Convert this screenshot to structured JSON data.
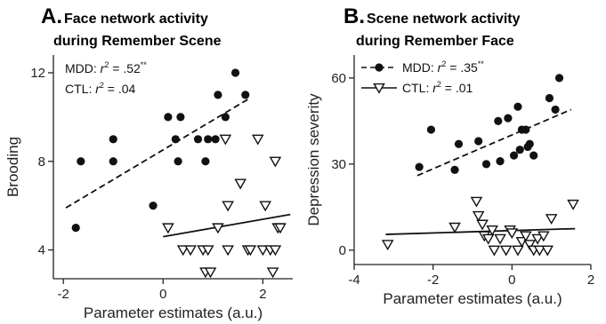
{
  "chart_data": [
    {
      "type": "scatter",
      "panel_letter": "A.",
      "title_line1": "Face network activity",
      "title_line2": "during Remember Scene",
      "xlabel": "Parameter estimates (a.u.)",
      "ylabel": "Brooding",
      "xlim": [
        -2.2,
        2.6
      ],
      "ylim": [
        2.7,
        12.8
      ],
      "xticks": [
        -2,
        0,
        2
      ],
      "xtick_labels": [
        "-2",
        "0",
        "2"
      ],
      "yticks": [
        4,
        8,
        12
      ],
      "ytick_labels": [
        "4",
        "8",
        "12"
      ],
      "legend_position": "top-left",
      "series": [
        {
          "name": "MDD",
          "stat_prefix": "MDD: ",
          "stat_r": "r",
          "stat_exp": "2",
          "stat_value": " = .52",
          "stat_sig": "**",
          "marker": "filled-circle",
          "line_style": "dashed",
          "fit": {
            "x": [
              -1.95,
              1.7
            ],
            "y": [
              5.9,
              10.8
            ]
          },
          "points": [
            {
              "x": -1.75,
              "y": 5
            },
            {
              "x": -1.65,
              "y": 8
            },
            {
              "x": -1.0,
              "y": 9
            },
            {
              "x": -1.0,
              "y": 8
            },
            {
              "x": -0.2,
              "y": 6
            },
            {
              "x": 0.1,
              "y": 10
            },
            {
              "x": 0.35,
              "y": 10
            },
            {
              "x": 0.25,
              "y": 9
            },
            {
              "x": 0.3,
              "y": 8
            },
            {
              "x": 0.7,
              "y": 9
            },
            {
              "x": 0.85,
              "y": 8
            },
            {
              "x": 0.9,
              "y": 9
            },
            {
              "x": 1.05,
              "y": 9
            },
            {
              "x": 1.1,
              "y": 11
            },
            {
              "x": 1.25,
              "y": 10
            },
            {
              "x": 1.45,
              "y": 12
            },
            {
              "x": 1.65,
              "y": 11
            }
          ]
        },
        {
          "name": "CTL",
          "stat_prefix": "CTL: ",
          "stat_r": "r",
          "stat_exp": "2",
          "stat_value": " = .04",
          "stat_sig": "",
          "marker": "open-triangle",
          "line_style": "solid",
          "fit": {
            "x": [
              0.0,
              2.55
            ],
            "y": [
              4.6,
              5.6
            ]
          },
          "points": [
            {
              "x": 0.1,
              "y": 5
            },
            {
              "x": 0.4,
              "y": 4
            },
            {
              "x": 0.55,
              "y": 4
            },
            {
              "x": 0.8,
              "y": 4
            },
            {
              "x": 0.9,
              "y": 4
            },
            {
              "x": 0.85,
              "y": 3
            },
            {
              "x": 0.95,
              "y": 3
            },
            {
              "x": 1.25,
              "y": 9
            },
            {
              "x": 1.3,
              "y": 4
            },
            {
              "x": 1.55,
              "y": 7
            },
            {
              "x": 1.7,
              "y": 4
            },
            {
              "x": 1.75,
              "y": 4
            },
            {
              "x": 1.1,
              "y": 5
            },
            {
              "x": 1.9,
              "y": 9
            },
            {
              "x": 1.3,
              "y": 6
            },
            {
              "x": 2.0,
              "y": 4
            },
            {
              "x": 2.05,
              "y": 6
            },
            {
              "x": 2.15,
              "y": 4
            },
            {
              "x": 2.25,
              "y": 8
            },
            {
              "x": 2.3,
              "y": 5
            },
            {
              "x": 2.35,
              "y": 5
            },
            {
              "x": 2.2,
              "y": 3
            },
            {
              "x": 2.25,
              "y": 4
            }
          ]
        }
      ]
    },
    {
      "type": "scatter",
      "panel_letter": "B.",
      "title_line1": "Scene network activity",
      "title_line2": "during Remember Face",
      "xlabel": "Parameter estimates (a.u.)",
      "ylabel": "Depression severity",
      "xlim": [
        -4,
        2
      ],
      "ylim": [
        -5,
        68
      ],
      "xticks": [
        -4,
        -2,
        0,
        2
      ],
      "xtick_labels": [
        "-4",
        "-2",
        "0",
        "2"
      ],
      "yticks": [
        0,
        30,
        60
      ],
      "ytick_labels": [
        "0",
        "30",
        "60"
      ],
      "legend_position": "top-left",
      "series": [
        {
          "name": "MDD",
          "stat_prefix": "MDD: ",
          "stat_r": "r",
          "stat_exp": "2",
          "stat_value": " = .35",
          "stat_sig": "**",
          "marker": "filled-circle",
          "line_style": "dashed",
          "fit": {
            "x": [
              -2.4,
              1.5
            ],
            "y": [
              26,
              49
            ]
          },
          "points": [
            {
              "x": -2.35,
              "y": 29
            },
            {
              "x": -2.05,
              "y": 42
            },
            {
              "x": -1.45,
              "y": 28
            },
            {
              "x": -1.35,
              "y": 37
            },
            {
              "x": -0.85,
              "y": 38
            },
            {
              "x": -0.65,
              "y": 30
            },
            {
              "x": -0.35,
              "y": 45
            },
            {
              "x": -0.3,
              "y": 31
            },
            {
              "x": -0.1,
              "y": 46
            },
            {
              "x": 0.05,
              "y": 33
            },
            {
              "x": 0.15,
              "y": 50
            },
            {
              "x": 0.25,
              "y": 42
            },
            {
              "x": 0.2,
              "y": 35
            },
            {
              "x": 0.35,
              "y": 42
            },
            {
              "x": 0.4,
              "y": 36
            },
            {
              "x": 0.45,
              "y": 37
            },
            {
              "x": 0.55,
              "y": 33
            },
            {
              "x": 0.95,
              "y": 53
            },
            {
              "x": 1.1,
              "y": 49
            },
            {
              "x": 1.2,
              "y": 60
            }
          ]
        },
        {
          "name": "CTL",
          "stat_prefix": "CTL: ",
          "stat_r": "r",
          "stat_exp": "2",
          "stat_value": " = .01",
          "stat_sig": "",
          "marker": "open-triangle",
          "line_style": "solid",
          "fit": {
            "x": [
              -3.2,
              1.6
            ],
            "y": [
              5.5,
              7.5
            ]
          },
          "points": [
            {
              "x": -3.15,
              "y": 2
            },
            {
              "x": -1.45,
              "y": 8
            },
            {
              "x": -0.9,
              "y": 17
            },
            {
              "x": -0.85,
              "y": 12
            },
            {
              "x": -0.75,
              "y": 9
            },
            {
              "x": -0.7,
              "y": 5
            },
            {
              "x": -0.6,
              "y": 4
            },
            {
              "x": -0.5,
              "y": 7
            },
            {
              "x": -0.45,
              "y": 0
            },
            {
              "x": -0.3,
              "y": 4
            },
            {
              "x": -0.15,
              "y": 0
            },
            {
              "x": -0.05,
              "y": 7
            },
            {
              "x": 0.0,
              "y": 6
            },
            {
              "x": 0.15,
              "y": 0
            },
            {
              "x": 0.25,
              "y": 3
            },
            {
              "x": 0.35,
              "y": 5
            },
            {
              "x": 0.45,
              "y": 2
            },
            {
              "x": 0.55,
              "y": 0
            },
            {
              "x": 0.65,
              "y": 4
            },
            {
              "x": 0.7,
              "y": 0
            },
            {
              "x": 0.8,
              "y": 5
            },
            {
              "x": 0.9,
              "y": 0
            },
            {
              "x": 1.0,
              "y": 11
            },
            {
              "x": 1.55,
              "y": 16
            }
          ]
        }
      ]
    }
  ]
}
